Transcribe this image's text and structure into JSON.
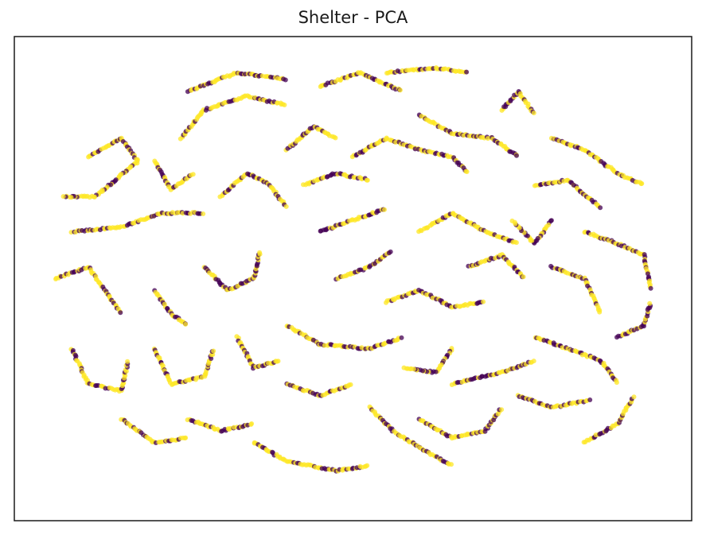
{
  "chart_data": {
    "type": "scatter",
    "title": "Shelter - PCA",
    "xlabel": "",
    "ylabel": "",
    "x_ticks": [],
    "y_ticks": [],
    "grid": false,
    "legend": "none",
    "marker_alpha": 0.75,
    "series": [
      {
        "class": 0,
        "color": "#440154"
      },
      {
        "class": 1,
        "color": "#fde725"
      }
    ],
    "xlim": [
      -1.0,
      1.0
    ],
    "ylim": [
      -1.0,
      1.0
    ],
    "strands": [
      [
        [
          -0.8,
          0.52
        ],
        [
          -0.7,
          0.6
        ],
        [
          -0.65,
          0.5
        ],
        [
          -0.78,
          0.35
        ],
        [
          -0.88,
          0.35
        ]
      ],
      [
        [
          -0.52,
          0.6
        ],
        [
          -0.45,
          0.72
        ],
        [
          -0.32,
          0.78
        ],
        [
          -0.2,
          0.74
        ]
      ],
      [
        [
          -0.5,
          0.8
        ],
        [
          -0.35,
          0.88
        ],
        [
          -0.2,
          0.85
        ]
      ],
      [
        [
          -0.85,
          0.2
        ],
        [
          -0.7,
          0.22
        ],
        [
          -0.58,
          0.28
        ],
        [
          -0.45,
          0.28
        ]
      ],
      [
        [
          -0.9,
          0.0
        ],
        [
          -0.8,
          0.05
        ],
        [
          -0.75,
          -0.05
        ],
        [
          -0.7,
          -0.15
        ]
      ],
      [
        [
          -0.85,
          -0.3
        ],
        [
          -0.8,
          -0.45
        ],
        [
          -0.7,
          -0.48
        ],
        [
          -0.68,
          -0.35
        ]
      ],
      [
        [
          -0.6,
          -0.3
        ],
        [
          -0.55,
          -0.45
        ],
        [
          -0.45,
          -0.42
        ],
        [
          -0.42,
          -0.3
        ]
      ],
      [
        [
          -0.6,
          -0.05
        ],
        [
          -0.55,
          -0.15
        ],
        [
          -0.5,
          -0.2
        ]
      ],
      [
        [
          -0.45,
          0.05
        ],
        [
          -0.38,
          -0.05
        ],
        [
          -0.3,
          0.0
        ],
        [
          -0.28,
          0.12
        ]
      ],
      [
        [
          -0.4,
          0.35
        ],
        [
          -0.32,
          0.45
        ],
        [
          -0.25,
          0.4
        ],
        [
          -0.2,
          0.3
        ]
      ],
      [
        [
          -0.2,
          0.55
        ],
        [
          -0.12,
          0.65
        ],
        [
          -0.05,
          0.6
        ]
      ],
      [
        [
          -0.1,
          0.82
        ],
        [
          0.02,
          0.88
        ],
        [
          0.15,
          0.8
        ]
      ],
      [
        [
          0.1,
          0.88
        ],
        [
          0.25,
          0.9
        ],
        [
          0.35,
          0.88
        ]
      ],
      [
        [
          0.2,
          0.7
        ],
        [
          0.3,
          0.62
        ],
        [
          0.42,
          0.6
        ],
        [
          0.5,
          0.52
        ]
      ],
      [
        [
          0.0,
          0.52
        ],
        [
          0.1,
          0.6
        ],
        [
          0.2,
          0.55
        ],
        [
          0.3,
          0.52
        ],
        [
          0.35,
          0.45
        ]
      ],
      [
        [
          0.45,
          0.72
        ],
        [
          0.5,
          0.8
        ],
        [
          0.55,
          0.7
        ]
      ],
      [
        [
          0.6,
          0.6
        ],
        [
          0.7,
          0.55
        ],
        [
          0.8,
          0.45
        ],
        [
          0.88,
          0.4
        ]
      ],
      [
        [
          0.55,
          0.4
        ],
        [
          0.65,
          0.42
        ],
        [
          0.75,
          0.3
        ]
      ],
      [
        [
          0.7,
          0.2
        ],
        [
          0.8,
          0.15
        ],
        [
          0.88,
          0.1
        ],
        [
          0.9,
          -0.05
        ]
      ],
      [
        [
          0.6,
          0.05
        ],
        [
          0.7,
          0.0
        ],
        [
          0.75,
          -0.15
        ]
      ],
      [
        [
          0.8,
          -0.25
        ],
        [
          0.88,
          -0.2
        ],
        [
          0.9,
          -0.1
        ]
      ],
      [
        [
          0.55,
          -0.25
        ],
        [
          0.65,
          -0.3
        ],
        [
          0.75,
          -0.35
        ],
        [
          0.8,
          -0.45
        ]
      ],
      [
        [
          0.5,
          -0.5
        ],
        [
          0.6,
          -0.55
        ],
        [
          0.72,
          -0.52
        ]
      ],
      [
        [
          0.3,
          -0.45
        ],
        [
          0.45,
          -0.4
        ],
        [
          0.55,
          -0.35
        ]
      ],
      [
        [
          0.2,
          -0.6
        ],
        [
          0.3,
          -0.68
        ],
        [
          0.4,
          -0.65
        ],
        [
          0.45,
          -0.55
        ]
      ],
      [
        [
          0.05,
          -0.55
        ],
        [
          0.12,
          -0.65
        ],
        [
          0.2,
          -0.72
        ],
        [
          0.3,
          -0.8
        ]
      ],
      [
        [
          -0.3,
          -0.7
        ],
        [
          -0.2,
          -0.78
        ],
        [
          -0.05,
          -0.82
        ],
        [
          0.05,
          -0.8
        ]
      ],
      [
        [
          -0.5,
          -0.6
        ],
        [
          -0.4,
          -0.65
        ],
        [
          -0.3,
          -0.62
        ]
      ],
      [
        [
          -0.2,
          -0.45
        ],
        [
          -0.1,
          -0.5
        ],
        [
          0.0,
          -0.45
        ]
      ],
      [
        [
          -0.2,
          -0.2
        ],
        [
          -0.1,
          -0.28
        ],
        [
          0.05,
          -0.3
        ],
        [
          0.15,
          -0.25
        ]
      ],
      [
        [
          0.1,
          -0.1
        ],
        [
          0.2,
          -0.05
        ],
        [
          0.3,
          -0.12
        ],
        [
          0.4,
          -0.1
        ]
      ],
      [
        [
          0.2,
          0.2
        ],
        [
          0.3,
          0.28
        ],
        [
          0.4,
          0.2
        ],
        [
          0.5,
          0.15
        ]
      ],
      [
        [
          -0.1,
          0.2
        ],
        [
          0.0,
          0.25
        ],
        [
          0.1,
          0.3
        ]
      ],
      [
        [
          -0.05,
          0.0
        ],
        [
          0.05,
          0.05
        ],
        [
          0.12,
          0.12
        ]
      ],
      [
        [
          0.35,
          0.05
        ],
        [
          0.45,
          0.1
        ],
        [
          0.52,
          0.0
        ]
      ],
      [
        [
          -0.6,
          0.5
        ],
        [
          -0.55,
          0.38
        ],
        [
          -0.48,
          0.45
        ]
      ],
      [
        [
          0.3,
          -0.3
        ],
        [
          0.25,
          -0.4
        ],
        [
          0.15,
          -0.38
        ]
      ],
      [
        [
          -0.35,
          -0.25
        ],
        [
          -0.3,
          -0.38
        ],
        [
          -0.22,
          -0.35
        ]
      ],
      [
        [
          0.6,
          0.25
        ],
        [
          0.55,
          0.15
        ],
        [
          0.48,
          0.25
        ]
      ],
      [
        [
          -0.7,
          -0.6
        ],
        [
          -0.6,
          -0.7
        ],
        [
          -0.5,
          -0.68
        ]
      ],
      [
        [
          0.7,
          -0.7
        ],
        [
          0.8,
          -0.62
        ],
        [
          0.85,
          -0.5
        ]
      ],
      [
        [
          -0.15,
          0.4
        ],
        [
          -0.05,
          0.45
        ],
        [
          0.05,
          0.42
        ]
      ]
    ]
  }
}
